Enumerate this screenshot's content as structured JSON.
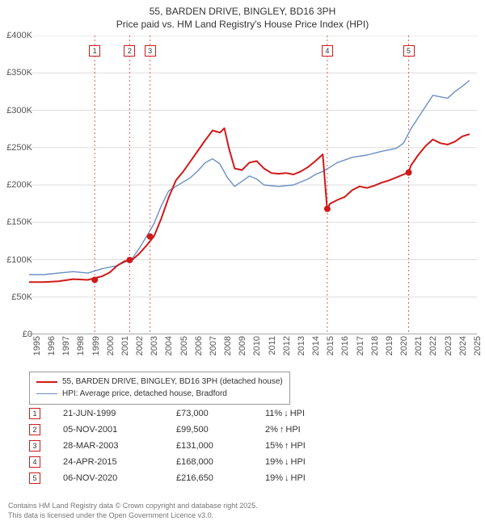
{
  "title_line1": "55, BARDEN DRIVE, BINGLEY, BD16 3PH",
  "title_line2": "Price paid vs. HM Land Registry's House Price Index (HPI)",
  "chart": {
    "type": "line",
    "background_color": "#ffffff",
    "grid_color": "#dddddd",
    "axis_color": "#555555",
    "xlim": [
      1995,
      2025.5
    ],
    "ylim": [
      0,
      400000
    ],
    "y_ticks": [
      0,
      50000,
      100000,
      150000,
      200000,
      250000,
      300000,
      350000,
      400000
    ],
    "y_tick_labels": [
      "£0",
      "£50K",
      "£100K",
      "£150K",
      "£200K",
      "£250K",
      "£300K",
      "£350K",
      "£400K"
    ],
    "x_ticks": [
      1995,
      1996,
      1997,
      1998,
      1999,
      2000,
      2001,
      2002,
      2003,
      2004,
      2005,
      2006,
      2007,
      2008,
      2009,
      2010,
      2011,
      2012,
      2013,
      2014,
      2015,
      2016,
      2017,
      2018,
      2019,
      2020,
      2021,
      2022,
      2023,
      2024,
      2025
    ],
    "series": [
      {
        "id": "hpi",
        "label": "HPI: Average price, detached house, Bradford",
        "color": "#6a8fc4",
        "width": 1.4,
        "points": [
          [
            1995,
            80000
          ],
          [
            1996,
            80000
          ],
          [
            1997,
            82000
          ],
          [
            1998,
            84000
          ],
          [
            1999,
            82000
          ],
          [
            2000,
            88000
          ],
          [
            2001,
            92000
          ],
          [
            2002,
            101000
          ],
          [
            2002.5,
            115000
          ],
          [
            2003,
            131000
          ],
          [
            2003.5,
            148000
          ],
          [
            2004,
            172000
          ],
          [
            2004.5,
            192000
          ],
          [
            2005,
            198000
          ],
          [
            2006,
            210000
          ],
          [
            2006.5,
            219000
          ],
          [
            2007,
            230000
          ],
          [
            2007.5,
            235000
          ],
          [
            2008,
            228000
          ],
          [
            2008.5,
            210000
          ],
          [
            2009,
            198000
          ],
          [
            2009.5,
            205000
          ],
          [
            2010,
            212000
          ],
          [
            2010.5,
            208000
          ],
          [
            2011,
            200000
          ],
          [
            2012,
            198000
          ],
          [
            2013,
            200000
          ],
          [
            2014,
            208000
          ],
          [
            2014.5,
            214000
          ],
          [
            2015,
            218000
          ],
          [
            2015.5,
            224000
          ],
          [
            2016,
            230000
          ],
          [
            2017,
            237000
          ],
          [
            2018,
            240000
          ],
          [
            2019,
            245000
          ],
          [
            2020,
            249000
          ],
          [
            2020.5,
            256000
          ],
          [
            2021,
            275000
          ],
          [
            2021.5,
            290000
          ],
          [
            2022,
            305000
          ],
          [
            2022.5,
            320000
          ],
          [
            2023,
            318000
          ],
          [
            2023.5,
            316000
          ],
          [
            2024,
            325000
          ],
          [
            2024.5,
            332000
          ],
          [
            2025,
            340000
          ]
        ]
      },
      {
        "id": "price_paid",
        "label": "55, BARDEN DRIVE, BINGLEY, BD16 3PH (detached house)",
        "color": "#d11919",
        "width": 2.0,
        "points": [
          [
            1995,
            70000
          ],
          [
            1996,
            70000
          ],
          [
            1997,
            71000
          ],
          [
            1998,
            74000
          ],
          [
            1999,
            73000
          ],
          [
            2000,
            78000
          ],
          [
            2000.5,
            83000
          ],
          [
            2001,
            92000
          ],
          [
            2001.5,
            98000
          ],
          [
            2002,
            99500
          ],
          [
            2002.5,
            108000
          ],
          [
            2003,
            119000
          ],
          [
            2003.5,
            131000
          ],
          [
            2004,
            155000
          ],
          [
            2004.5,
            183000
          ],
          [
            2005,
            206000
          ],
          [
            2005.5,
            218000
          ],
          [
            2006,
            232000
          ],
          [
            2006.5,
            246000
          ],
          [
            2007,
            260000
          ],
          [
            2007.5,
            273000
          ],
          [
            2008,
            270000
          ],
          [
            2008.3,
            276000
          ],
          [
            2008.6,
            250000
          ],
          [
            2009,
            222000
          ],
          [
            2009.5,
            220000
          ],
          [
            2010,
            230000
          ],
          [
            2010.5,
            232000
          ],
          [
            2011,
            222000
          ],
          [
            2011.5,
            216000
          ],
          [
            2012,
            215000
          ],
          [
            2012.5,
            216000
          ],
          [
            2013,
            214000
          ],
          [
            2013.5,
            218000
          ],
          [
            2014,
            224000
          ],
          [
            2014.5,
            232000
          ],
          [
            2015,
            241000
          ],
          [
            2015.3,
            168000
          ],
          [
            2015.5,
            175000
          ],
          [
            2016,
            180000
          ],
          [
            2016.5,
            184000
          ],
          [
            2017,
            193000
          ],
          [
            2017.5,
            198000
          ],
          [
            2018,
            196000
          ],
          [
            2018.5,
            199000
          ],
          [
            2019,
            203000
          ],
          [
            2019.5,
            206000
          ],
          [
            2020,
            210000
          ],
          [
            2020.5,
            214000
          ],
          [
            2020.85,
            216650
          ],
          [
            2021,
            226000
          ],
          [
            2021.5,
            240000
          ],
          [
            2022,
            252000
          ],
          [
            2022.5,
            261000
          ],
          [
            2023,
            256000
          ],
          [
            2023.5,
            254000
          ],
          [
            2024,
            258000
          ],
          [
            2024.5,
            265000
          ],
          [
            2025,
            268000
          ]
        ]
      }
    ],
    "sale_markers": [
      {
        "x": 1999.47,
        "y": 73000,
        "color": "#d11919"
      },
      {
        "x": 2001.85,
        "y": 99500,
        "color": "#d11919"
      },
      {
        "x": 2003.24,
        "y": 131000,
        "color": "#d11919"
      },
      {
        "x": 2015.31,
        "y": 168000,
        "color": "#d11919"
      },
      {
        "x": 2020.85,
        "y": 216650,
        "color": "#d11919"
      }
    ],
    "event_lines": [
      {
        "n": 1,
        "x": 1999.47,
        "color": "#d11919"
      },
      {
        "n": 2,
        "x": 2001.85,
        "color": "#d11919"
      },
      {
        "n": 3,
        "x": 2003.24,
        "color": "#d11919"
      },
      {
        "n": 4,
        "x": 2015.31,
        "color": "#d11919"
      },
      {
        "n": 5,
        "x": 2020.85,
        "color": "#d11919"
      }
    ]
  },
  "legend": [
    {
      "color": "#d11919",
      "width": 2.0,
      "label": "55, BARDEN DRIVE, BINGLEY, BD16 3PH (detached house)"
    },
    {
      "color": "#6a8fc4",
      "width": 1.4,
      "label": "HPI: Average price, detached house, Bradford"
    }
  ],
  "events": [
    {
      "n": 1,
      "date": "21-JUN-1999",
      "price": "£73,000",
      "diff": "11%",
      "dir": "down",
      "suffix": "HPI",
      "color": "#d11919"
    },
    {
      "n": 2,
      "date": "05-NOV-2001",
      "price": "£99,500",
      "diff": "2%",
      "dir": "up",
      "suffix": "HPI",
      "color": "#d11919"
    },
    {
      "n": 3,
      "date": "28-MAR-2003",
      "price": "£131,000",
      "diff": "15%",
      "dir": "up",
      "suffix": "HPI",
      "color": "#d11919"
    },
    {
      "n": 4,
      "date": "24-APR-2015",
      "price": "£168,000",
      "diff": "19%",
      "dir": "down",
      "suffix": "HPI",
      "color": "#d11919"
    },
    {
      "n": 5,
      "date": "06-NOV-2020",
      "price": "£216,650",
      "diff": "19%",
      "dir": "down",
      "suffix": "HPI",
      "color": "#d11919"
    }
  ],
  "footer_line1": "Contains HM Land Registry data © Crown copyright and database right 2025.",
  "footer_line2": "This data is licensed under the Open Government Licence v3.0.",
  "arrow_up": "↑",
  "arrow_down": "↓"
}
